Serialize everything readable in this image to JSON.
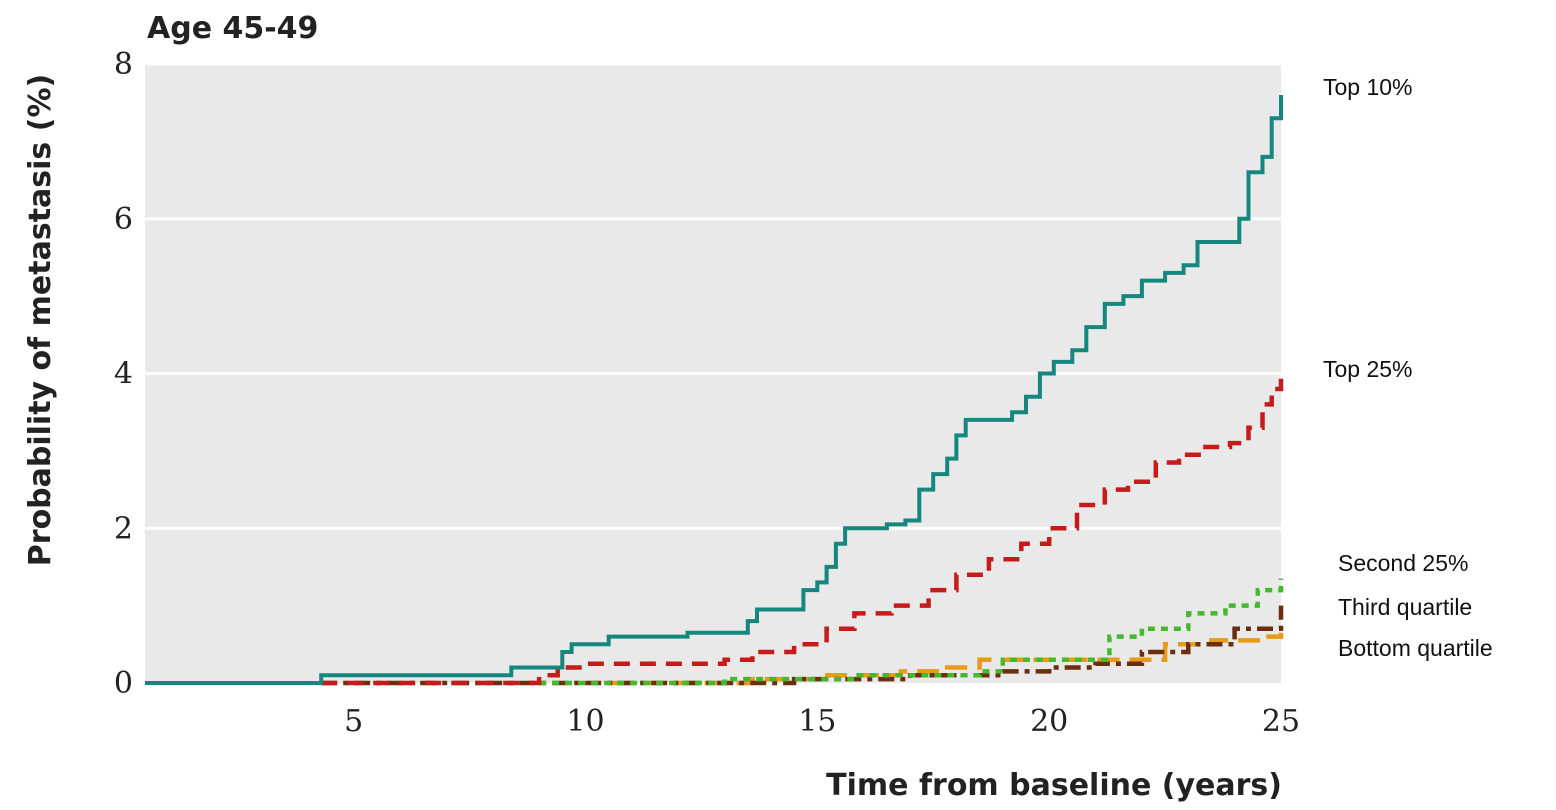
{
  "chart_data": {
    "type": "line",
    "title": "Age 45-49",
    "xlabel": "Time from baseline (years)",
    "ylabel": "Probability of metastasis (%)",
    "xlim": [
      0.5,
      25
    ],
    "ylim": [
      0,
      8
    ],
    "xticks": [
      5,
      10,
      15,
      20,
      25
    ],
    "yticks": [
      0,
      2,
      4,
      6,
      8
    ],
    "grid": "horizontal",
    "background": "#e9e9e9",
    "series": [
      {
        "name": "Top 10%",
        "color": "#15877f",
        "dash": "solid",
        "points": [
          [
            0.5,
            0
          ],
          [
            4.3,
            0
          ],
          [
            4.3,
            0.1
          ],
          [
            8.4,
            0.1
          ],
          [
            8.4,
            0.2
          ],
          [
            9.3,
            0.2
          ],
          [
            9.5,
            0.4
          ],
          [
            9.7,
            0.5
          ],
          [
            10.5,
            0.5
          ],
          [
            10.5,
            0.6
          ],
          [
            12.2,
            0.6
          ],
          [
            12.2,
            0.65
          ],
          [
            13.0,
            0.65
          ],
          [
            13.5,
            0.8
          ],
          [
            13.7,
            0.95
          ],
          [
            14.5,
            0.95
          ],
          [
            14.7,
            1.2
          ],
          [
            15.0,
            1.3
          ],
          [
            15.2,
            1.5
          ],
          [
            15.4,
            1.8
          ],
          [
            15.6,
            2.0
          ],
          [
            16.5,
            2.05
          ],
          [
            16.9,
            2.1
          ],
          [
            17.2,
            2.5
          ],
          [
            17.5,
            2.7
          ],
          [
            17.8,
            2.9
          ],
          [
            18.0,
            3.2
          ],
          [
            18.2,
            3.4
          ],
          [
            18.7,
            3.4
          ],
          [
            19.2,
            3.5
          ],
          [
            19.5,
            3.7
          ],
          [
            19.8,
            4.0
          ],
          [
            20.1,
            4.15
          ],
          [
            20.5,
            4.3
          ],
          [
            20.8,
            4.6
          ],
          [
            21.2,
            4.9
          ],
          [
            21.6,
            5.0
          ],
          [
            22.0,
            5.2
          ],
          [
            22.5,
            5.3
          ],
          [
            22.9,
            5.4
          ],
          [
            23.2,
            5.7
          ],
          [
            23.9,
            5.7
          ],
          [
            24.1,
            6.0
          ],
          [
            24.3,
            6.6
          ],
          [
            24.6,
            6.8
          ],
          [
            24.8,
            7.3
          ],
          [
            25.0,
            7.6
          ]
        ]
      },
      {
        "name": "Top 25%",
        "color": "#c61b1b",
        "dash": "dashed",
        "points": [
          [
            4.3,
            0
          ],
          [
            8.5,
            0
          ],
          [
            9.0,
            0.1
          ],
          [
            9.4,
            0.2
          ],
          [
            10.0,
            0.25
          ],
          [
            11.0,
            0.25
          ],
          [
            12.2,
            0.25
          ],
          [
            13.0,
            0.3
          ],
          [
            13.6,
            0.4
          ],
          [
            14.5,
            0.5
          ],
          [
            15.2,
            0.7
          ],
          [
            15.8,
            0.9
          ],
          [
            16.6,
            1.0
          ],
          [
            17.4,
            1.2
          ],
          [
            18.0,
            1.4
          ],
          [
            18.7,
            1.6
          ],
          [
            19.4,
            1.8
          ],
          [
            20.0,
            2.0
          ],
          [
            20.6,
            2.3
          ],
          [
            21.2,
            2.5
          ],
          [
            21.7,
            2.6
          ],
          [
            22.3,
            2.85
          ],
          [
            22.8,
            2.95
          ],
          [
            23.3,
            3.05
          ],
          [
            23.9,
            3.1
          ],
          [
            24.3,
            3.3
          ],
          [
            24.6,
            3.6
          ],
          [
            24.8,
            3.8
          ],
          [
            25.0,
            4.0
          ]
        ]
      },
      {
        "name": "Second 25%",
        "color": "#45b82e",
        "dash": "dotted",
        "points": [
          [
            9.0,
            0
          ],
          [
            11.5,
            0
          ],
          [
            13.0,
            0.05
          ],
          [
            14.5,
            0.05
          ],
          [
            15.8,
            0.1
          ],
          [
            17.3,
            0.1
          ],
          [
            18.5,
            0.15
          ],
          [
            19.0,
            0.3
          ],
          [
            20.5,
            0.3
          ],
          [
            21.3,
            0.6
          ],
          [
            22.0,
            0.7
          ],
          [
            23.0,
            0.9
          ],
          [
            23.8,
            1.0
          ],
          [
            24.5,
            1.2
          ],
          [
            25.0,
            1.35
          ]
        ]
      },
      {
        "name": "Third quartile",
        "color": "#6b2e0e",
        "dash": "dash-dot",
        "points": [
          [
            4.3,
            0
          ],
          [
            12.5,
            0
          ],
          [
            14.5,
            0.05
          ],
          [
            15.5,
            0.05
          ],
          [
            17.0,
            0.1
          ],
          [
            18.2,
            0.1
          ],
          [
            19.0,
            0.15
          ],
          [
            20.0,
            0.2
          ],
          [
            21.0,
            0.25
          ],
          [
            22.0,
            0.4
          ],
          [
            23.0,
            0.5
          ],
          [
            24.0,
            0.7
          ],
          [
            25.0,
            1.0
          ]
        ]
      },
      {
        "name": "Bottom quartile",
        "color": "#e89b18",
        "dash": "long-dash",
        "points": [
          [
            10.5,
            0
          ],
          [
            13.5,
            0.05
          ],
          [
            15.0,
            0.1
          ],
          [
            16.8,
            0.15
          ],
          [
            17.8,
            0.2
          ],
          [
            18.5,
            0.3
          ],
          [
            20.3,
            0.3
          ],
          [
            21.0,
            0.3
          ],
          [
            22.5,
            0.5
          ],
          [
            23.5,
            0.55
          ],
          [
            24.5,
            0.6
          ],
          [
            25.0,
            0.65
          ]
        ]
      }
    ]
  }
}
